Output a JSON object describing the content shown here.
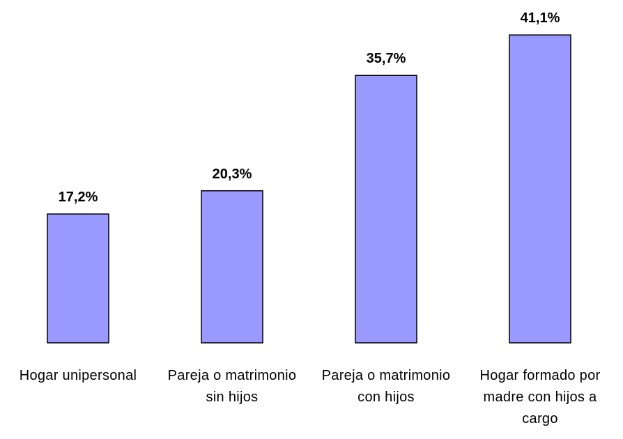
{
  "chart_data": {
    "type": "bar",
    "categories": [
      "Hogar unipersonal",
      "Pareja o matrimonio sin hijos",
      "Pareja o matrimonio con hijos",
      "Hogar formado por madre con hijos a cargo"
    ],
    "values": [
      17.2,
      20.3,
      35.7,
      41.1
    ],
    "value_labels": [
      "17,2%",
      "20,3%",
      "35,7%",
      "41,1%"
    ],
    "color": "#9999ff"
  }
}
